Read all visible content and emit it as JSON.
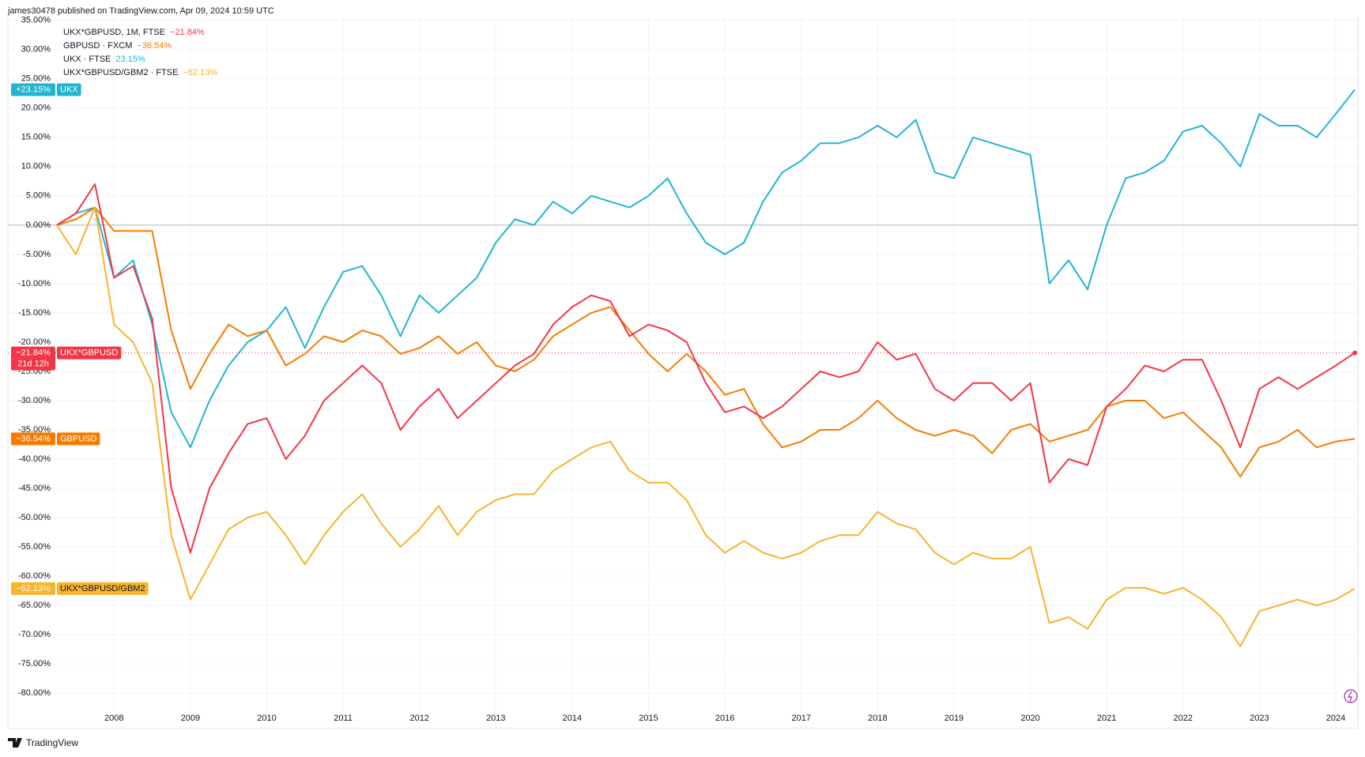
{
  "header": {
    "text": "james30478 published on TradingView.com, Apr 09, 2024 10:59 UTC"
  },
  "footer": {
    "brand": "TradingView"
  },
  "chart_data": {
    "type": "line",
    "xlim": [
      2006.61,
      2024.29
    ],
    "xticks": [
      2008,
      2009,
      2010,
      2011,
      2012,
      2013,
      2014,
      2015,
      2016,
      2017,
      2018,
      2019,
      2020,
      2021,
      2022,
      2023,
      2024
    ],
    "ylim": [
      -82.4,
      35.5
    ],
    "yticks": [
      {
        "value": 35,
        "label": "35.00%"
      },
      {
        "value": 30,
        "label": "30.00%"
      },
      {
        "value": 25,
        "label": "25.00%"
      },
      {
        "value": 20,
        "label": "20.00%"
      },
      {
        "value": 15,
        "label": "15.00%"
      },
      {
        "value": 10,
        "label": "10.00%"
      },
      {
        "value": 5,
        "label": "5.00%"
      },
      {
        "value": 0,
        "label": "0.00%"
      },
      {
        "value": -5,
        "label": "-5.00%"
      },
      {
        "value": -10,
        "label": "-10.00%"
      },
      {
        "value": -15,
        "label": "-15.00%"
      },
      {
        "value": -20,
        "label": "-20.00%"
      },
      {
        "value": -25,
        "label": "-25.00%"
      },
      {
        "value": -30,
        "label": "-30.00%"
      },
      {
        "value": -35,
        "label": "-35.00%"
      },
      {
        "value": -40,
        "label": "-40.00%"
      },
      {
        "value": -45,
        "label": "-45.00%"
      },
      {
        "value": -50,
        "label": "-50.00%"
      },
      {
        "value": -55,
        "label": "-55.00%"
      },
      {
        "value": -60,
        "label": "-60.00%"
      },
      {
        "value": -65,
        "label": "-65.00%"
      },
      {
        "value": -70,
        "label": "-70.00%"
      },
      {
        "value": -75,
        "label": "-75.00%"
      },
      {
        "value": -80,
        "label": "-80.00%"
      }
    ],
    "grid": true,
    "countdown": "21d 12h",
    "x": [
      2007.25,
      2007.5,
      2007.75,
      2008,
      2008.25,
      2008.5,
      2008.75,
      2009,
      2009.25,
      2009.5,
      2009.75,
      2010,
      2010.25,
      2010.5,
      2010.75,
      2011,
      2011.25,
      2011.5,
      2011.75,
      2012,
      2012.25,
      2012.5,
      2012.75,
      2013,
      2013.25,
      2013.5,
      2013.75,
      2014,
      2014.25,
      2014.5,
      2014.75,
      2015,
      2015.25,
      2015.5,
      2015.75,
      2016,
      2016.25,
      2016.5,
      2016.75,
      2017,
      2017.25,
      2017.5,
      2017.75,
      2018,
      2018.25,
      2018.5,
      2018.75,
      2019,
      2019.25,
      2019.5,
      2019.75,
      2020,
      2020.25,
      2020.5,
      2020.75,
      2021,
      2021.25,
      2021.5,
      2021.75,
      2022,
      2022.25,
      2022.5,
      2022.75,
      2023,
      2023.25,
      2023.5,
      2023.75,
      2024,
      2024.25
    ],
    "series": [
      {
        "name": "UKX*GBPUSD, 1M, FTSE",
        "value_label": "−21.84%",
        "badge_name": "UKX*GBPUSD",
        "badge_value_label": "−21.84%",
        "color": "#f23645",
        "values": [
          0,
          2,
          7,
          -9,
          -7,
          -16,
          -45,
          -56,
          -45,
          -39,
          -34,
          -33,
          -40,
          -36,
          -30,
          -27,
          -24,
          -27,
          -35,
          -31,
          -28,
          -33,
          -30,
          -27,
          -24,
          -22,
          -17,
          -14,
          -12,
          -13,
          -19,
          -17,
          -18,
          -20,
          -27,
          -32,
          -31,
          -33,
          -31,
          -28,
          -25,
          -26,
          -25,
          -20,
          -23,
          -22,
          -28,
          -30,
          -27,
          -27,
          -30,
          -27,
          -44,
          -40,
          -41,
          -31,
          -28,
          -24,
          -25,
          -23,
          -23,
          -30,
          -38,
          -28,
          -26,
          -28,
          -26,
          -24,
          -21.84
        ]
      },
      {
        "name": "GBPUSD · FXCM",
        "value_label": "−36.54%",
        "badge_name": "GBPUSD",
        "badge_value_label": "−36.54%",
        "color": "#f57c00",
        "values": [
          0,
          1,
          3,
          -1,
          -1,
          -1,
          -18,
          -28,
          -22,
          -17,
          -19,
          -18,
          -24,
          -22,
          -19,
          -20,
          -18,
          -19,
          -22,
          -21,
          -19,
          -22,
          -20,
          -24,
          -25,
          -23,
          -19,
          -17,
          -15,
          -14,
          -18,
          -22,
          -25,
          -22,
          -25,
          -29,
          -28,
          -34,
          -38,
          -37,
          -35,
          -35,
          -33,
          -30,
          -33,
          -35,
          -36,
          -35,
          -36,
          -39,
          -35,
          -34,
          -37,
          -36,
          -35,
          -31,
          -30,
          -30,
          -33,
          -32,
          -35,
          -38,
          -43,
          -38,
          -37,
          -35,
          -38,
          -37,
          -36.54
        ]
      },
      {
        "name": "UKX · FTSE",
        "value_label": "23.15%",
        "badge_name": "UKX",
        "badge_value_label": "+23.15%",
        "color": "#22b5d0",
        "values": [
          0,
          2,
          3,
          -9,
          -6,
          -17,
          -32,
          -38,
          -30,
          -24,
          -20,
          -18,
          -14,
          -21,
          -14,
          -8,
          -7,
          -12,
          -19,
          -12,
          -15,
          -12,
          -9,
          -3,
          1,
          0,
          4,
          2,
          5,
          4,
          3,
          5,
          8,
          2,
          -3,
          -5,
          -3,
          4,
          9,
          11,
          14,
          14,
          15,
          17,
          15,
          18,
          9,
          8,
          15,
          14,
          13,
          12,
          -10,
          -6,
          -11,
          0,
          8,
          9,
          11,
          16,
          17,
          14,
          10,
          19,
          17,
          17,
          15,
          19,
          23.15
        ]
      },
      {
        "name": "UKX*GBPUSD/GBM2 · FTSE",
        "value_label": "−62.13%",
        "badge_name": "UKX*GBPUSD/GBM2",
        "badge_value_label": "−62.13%",
        "color": "#f7b42c",
        "values": [
          0,
          -5,
          3,
          -17,
          -20,
          -27,
          -53,
          -64,
          -58,
          -52,
          -50,
          -49,
          -53,
          -58,
          -53,
          -49,
          -46,
          -51,
          -55,
          -52,
          -48,
          -53,
          -49,
          -47,
          -46,
          -46,
          -42,
          -40,
          -38,
          -37,
          -42,
          -44,
          -44,
          -47,
          -53,
          -56,
          -54,
          -56,
          -57,
          -56,
          -54,
          -53,
          -53,
          -49,
          -51,
          -52,
          -56,
          -58,
          -56,
          -57,
          -57,
          -55,
          -68,
          -67,
          -69,
          -64,
          -62,
          -62,
          -63,
          -62,
          -64,
          -67,
          -72,
          -66,
          -65,
          -64,
          -65,
          -64,
          -62.13
        ]
      }
    ]
  }
}
